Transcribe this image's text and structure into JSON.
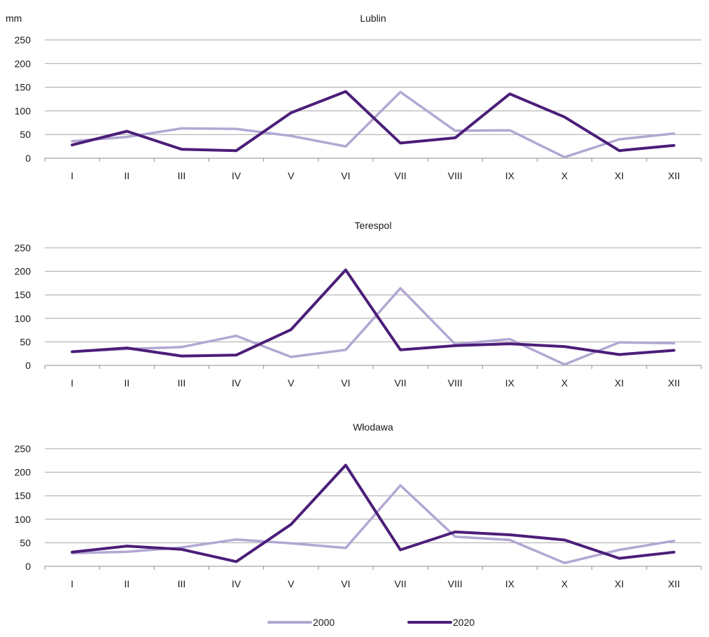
{
  "chart_data": [
    {
      "type": "line",
      "title": "Lublin",
      "ylabel": "mm",
      "ylim": [
        0,
        250
      ],
      "yticks": [
        0,
        50,
        100,
        150,
        200,
        250
      ],
      "categories": [
        "I",
        "II",
        "III",
        "IV",
        "V",
        "VI",
        "VII",
        "VIII",
        "IX",
        "X",
        "XI",
        "XII"
      ],
      "grid": true,
      "series": [
        {
          "name": "2000",
          "color": "#b3a7d3",
          "values": [
            36,
            45,
            63,
            62,
            47,
            25,
            140,
            58,
            59,
            2,
            40,
            52
          ]
        },
        {
          "name": "2020",
          "color": "#4b1e78",
          "values": [
            28,
            57,
            19,
            16,
            96,
            141,
            32,
            43,
            136,
            87,
            16,
            27
          ]
        }
      ]
    },
    {
      "type": "line",
      "title": "Terespol",
      "ylabel": "",
      "ylim": [
        0,
        250
      ],
      "yticks": [
        0,
        50,
        100,
        150,
        200,
        250
      ],
      "categories": [
        "I",
        "II",
        "III",
        "IV",
        "V",
        "VI",
        "VII",
        "VIII",
        "IX",
        "X",
        "XI",
        "XII"
      ],
      "grid": true,
      "series": [
        {
          "name": "2000",
          "color": "#b3a7d3",
          "values": [
            29,
            35,
            39,
            63,
            18,
            33,
            164,
            45,
            56,
            2,
            49,
            47
          ]
        },
        {
          "name": "2020",
          "color": "#4b1e78",
          "values": [
            29,
            37,
            20,
            22,
            76,
            203,
            33,
            42,
            46,
            40,
            23,
            32
          ]
        }
      ]
    },
    {
      "type": "line",
      "title": "Włodawa",
      "ylabel": "",
      "ylim": [
        0,
        250
      ],
      "yticks": [
        0,
        50,
        100,
        150,
        200,
        250
      ],
      "categories": [
        "I",
        "II",
        "III",
        "IV",
        "V",
        "VI",
        "VII",
        "VIII",
        "IX",
        "X",
        "XI",
        "XII"
      ],
      "grid": true,
      "series": [
        {
          "name": "2000",
          "color": "#b3a7d3",
          "values": [
            28,
            31,
            40,
            57,
            49,
            39,
            172,
            63,
            56,
            7,
            35,
            54
          ]
        },
        {
          "name": "2020",
          "color": "#4b1e78",
          "values": [
            30,
            43,
            36,
            10,
            89,
            215,
            35,
            73,
            67,
            56,
            17,
            30
          ]
        }
      ]
    }
  ],
  "legend": {
    "placement": "bottom-center",
    "items": [
      {
        "label": "2000",
        "color": "#b3a7d3"
      },
      {
        "label": "2020",
        "color": "#4b1e78"
      }
    ]
  }
}
